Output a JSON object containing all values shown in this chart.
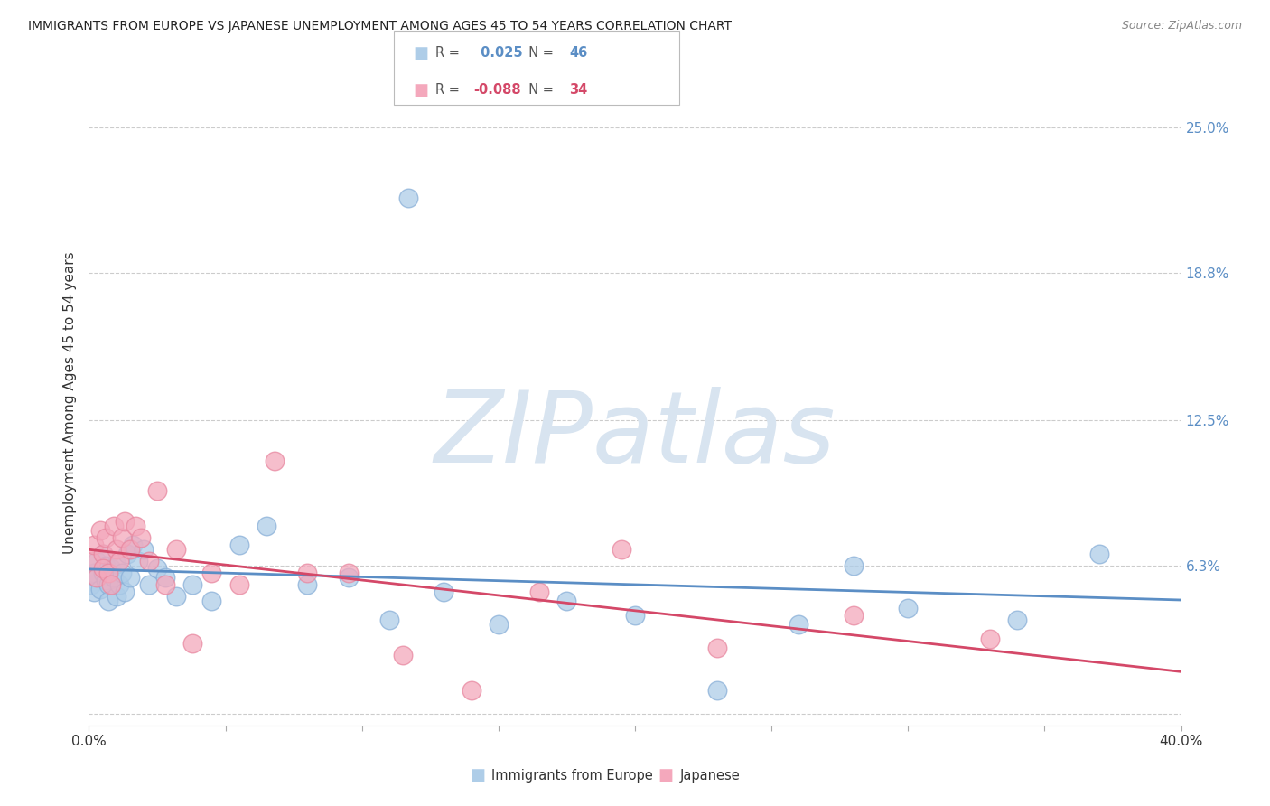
{
  "title": "IMMIGRANTS FROM EUROPE VS JAPANESE UNEMPLOYMENT AMONG AGES 45 TO 54 YEARS CORRELATION CHART",
  "source": "Source: ZipAtlas.com",
  "ylabel": "Unemployment Among Ages 45 to 54 years",
  "xlim": [
    0.0,
    0.4
  ],
  "ylim": [
    -0.005,
    0.27
  ],
  "xticks": [
    0.0,
    0.05,
    0.1,
    0.15,
    0.2,
    0.25,
    0.3,
    0.35,
    0.4
  ],
  "xticklabels": [
    "0.0%",
    "",
    "",
    "",
    "",
    "",
    "",
    "",
    "40.0%"
  ],
  "ytick_positions": [
    0.0,
    0.063,
    0.125,
    0.188,
    0.25
  ],
  "ytick_labels_right": [
    "",
    "6.3%",
    "12.5%",
    "18.8%",
    "25.0%"
  ],
  "blue_R": 0.025,
  "blue_N": 46,
  "pink_R": -0.088,
  "pink_N": 34,
  "blue_color": "#aecde8",
  "pink_color": "#f4a8bc",
  "blue_edge_color": "#8ab0d8",
  "pink_edge_color": "#e888a0",
  "blue_line_color": "#5b8ec5",
  "pink_line_color": "#d44868",
  "watermark": "ZIPatlas",
  "watermark_color": "#d8e4f0",
  "legend_label_blue": "Immigrants from Europe",
  "legend_label_pink": "Japanese",
  "blue_x": [
    0.001,
    0.002,
    0.002,
    0.003,
    0.003,
    0.004,
    0.005,
    0.005,
    0.006,
    0.006,
    0.007,
    0.007,
    0.008,
    0.009,
    0.01,
    0.01,
    0.011,
    0.012,
    0.013,
    0.014,
    0.015,
    0.016,
    0.018,
    0.02,
    0.022,
    0.025,
    0.028,
    0.032,
    0.038,
    0.045,
    0.055,
    0.065,
    0.08,
    0.095,
    0.11,
    0.13,
    0.15,
    0.175,
    0.2,
    0.23,
    0.26,
    0.3,
    0.34,
    0.37,
    0.117,
    0.28
  ],
  "blue_y": [
    0.055,
    0.06,
    0.052,
    0.058,
    0.065,
    0.053,
    0.06,
    0.068,
    0.057,
    0.063,
    0.055,
    0.048,
    0.062,
    0.058,
    0.064,
    0.05,
    0.055,
    0.06,
    0.052,
    0.068,
    0.058,
    0.072,
    0.065,
    0.07,
    0.055,
    0.062,
    0.058,
    0.05,
    0.055,
    0.048,
    0.072,
    0.08,
    0.055,
    0.058,
    0.04,
    0.052,
    0.038,
    0.048,
    0.042,
    0.01,
    0.038,
    0.045,
    0.04,
    0.068,
    0.22,
    0.063
  ],
  "pink_x": [
    0.001,
    0.002,
    0.003,
    0.004,
    0.005,
    0.005,
    0.006,
    0.007,
    0.008,
    0.009,
    0.01,
    0.011,
    0.012,
    0.013,
    0.015,
    0.017,
    0.019,
    0.022,
    0.025,
    0.028,
    0.032,
    0.038,
    0.045,
    0.055,
    0.068,
    0.08,
    0.095,
    0.115,
    0.14,
    0.165,
    0.195,
    0.23,
    0.28,
    0.33
  ],
  "pink_y": [
    0.065,
    0.072,
    0.058,
    0.078,
    0.068,
    0.062,
    0.075,
    0.06,
    0.055,
    0.08,
    0.07,
    0.065,
    0.075,
    0.082,
    0.07,
    0.08,
    0.075,
    0.065,
    0.095,
    0.055,
    0.07,
    0.03,
    0.06,
    0.055,
    0.108,
    0.06,
    0.06,
    0.025,
    0.01,
    0.052,
    0.07,
    0.028,
    0.042,
    0.032
  ],
  "figsize": [
    14.06,
    8.92
  ],
  "dpi": 100
}
